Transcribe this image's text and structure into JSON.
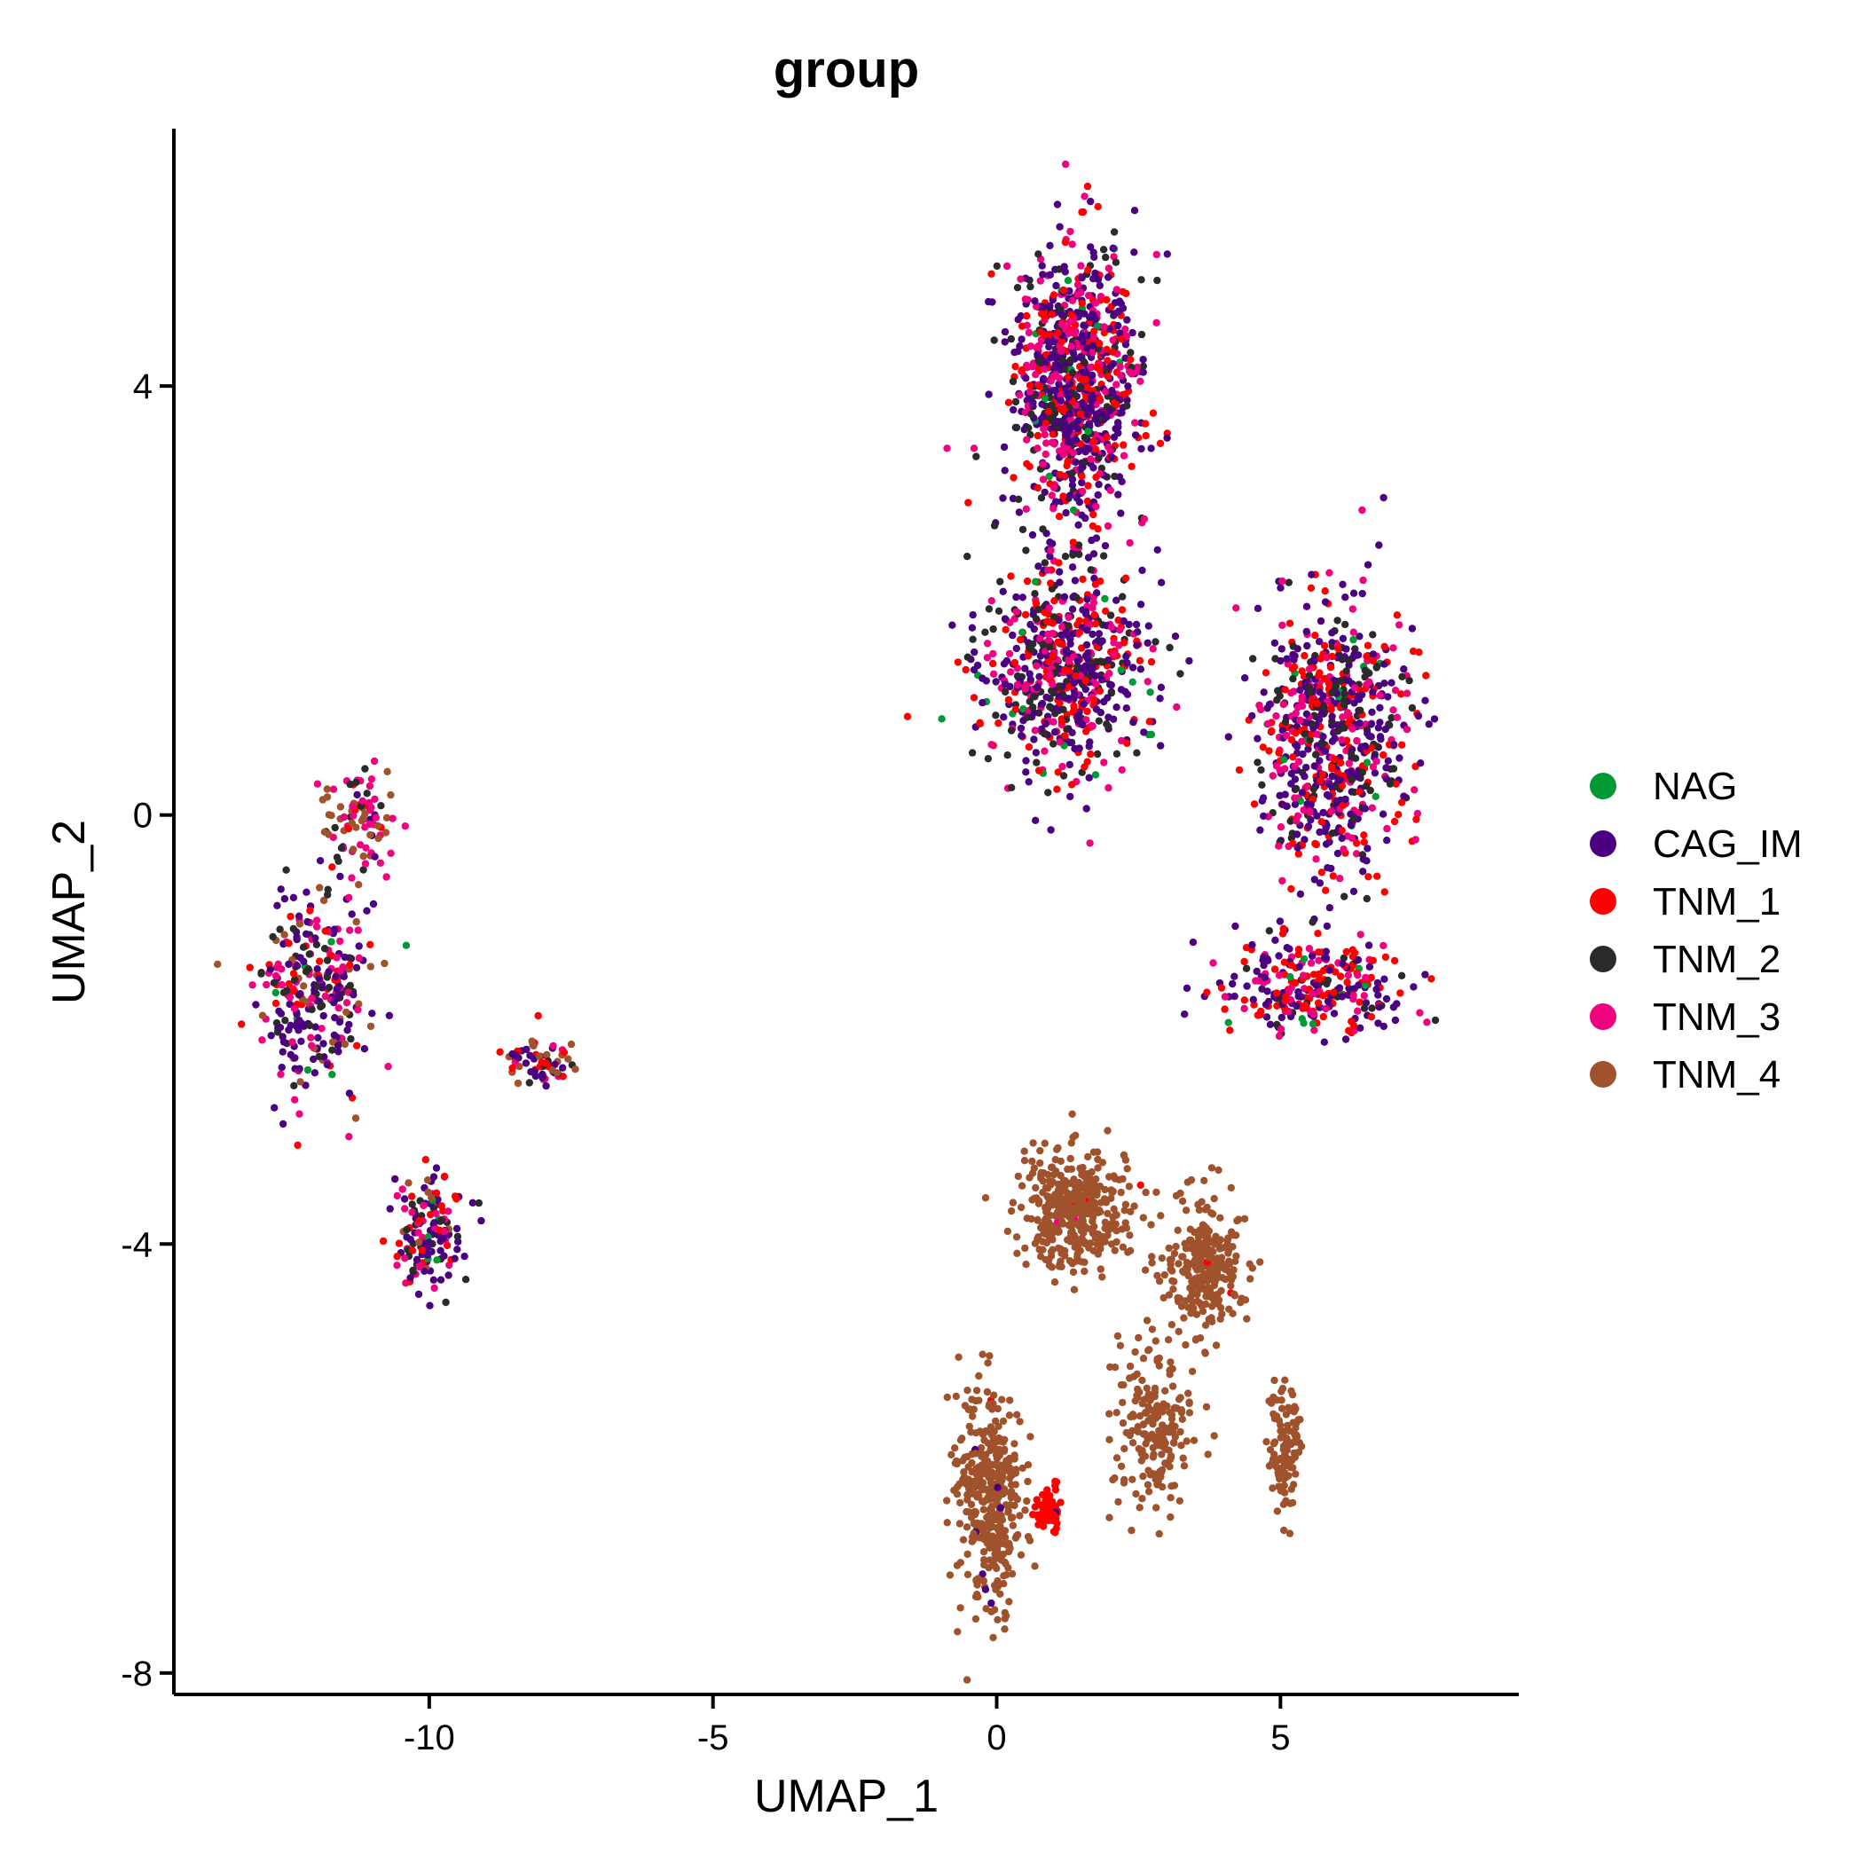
{
  "chart_data": {
    "type": "scatter",
    "title": "group",
    "xlabel": "UMAP_1",
    "ylabel": "UMAP_2",
    "xlim": [
      -14.5,
      9.2
    ],
    "ylim": [
      -8.2,
      6.4
    ],
    "x_ticks": [
      -10,
      -5,
      0,
      5
    ],
    "x_tick_labels": [
      "-10",
      "-5",
      "0",
      "5"
    ],
    "y_ticks": [
      4,
      0,
      -4,
      -8
    ],
    "y_tick_labels": [
      "4",
      "0",
      "-4",
      "-8"
    ],
    "grid": false,
    "legend_position": "right",
    "series": [
      {
        "name": "NAG",
        "color": "#009933"
      },
      {
        "name": "CAG_IM",
        "color": "#4B0082"
      },
      {
        "name": "TNM_1",
        "color": "#FF0000"
      },
      {
        "name": "TNM_2",
        "color": "#2B2B2B"
      },
      {
        "name": "TNM_3",
        "color": "#F0027F"
      },
      {
        "name": "TNM_4",
        "color": "#A0522D"
      }
    ],
    "clusters": [
      {
        "center": [
          -12.0,
          -1.6
        ],
        "spread": [
          0.9,
          0.9
        ],
        "n": 300,
        "mix": [
          0.02,
          0.34,
          0.14,
          0.16,
          0.24,
          0.1
        ]
      },
      {
        "center": [
          -11.2,
          0.0
        ],
        "spread": [
          0.6,
          0.5
        ],
        "n": 90,
        "mix": [
          0.0,
          0.1,
          0.05,
          0.15,
          0.4,
          0.3
        ]
      },
      {
        "center": [
          -10.0,
          -3.9
        ],
        "spread": [
          0.55,
          0.5
        ],
        "n": 150,
        "mix": [
          0.04,
          0.4,
          0.14,
          0.16,
          0.18,
          0.08
        ]
      },
      {
        "center": [
          -8.0,
          -2.3
        ],
        "spread": [
          0.6,
          0.2
        ],
        "n": 70,
        "mix": [
          0.0,
          0.35,
          0.15,
          0.1,
          0.1,
          0.3
        ]
      },
      {
        "center": [
          1.4,
          4.0
        ],
        "spread": [
          1.0,
          1.2
        ],
        "n": 900,
        "mix": [
          0.03,
          0.45,
          0.18,
          0.14,
          0.2,
          0.0
        ]
      },
      {
        "center": [
          1.2,
          1.4
        ],
        "spread": [
          1.3,
          0.9
        ],
        "n": 650,
        "mix": [
          0.03,
          0.4,
          0.22,
          0.15,
          0.2,
          0.0
        ]
      },
      {
        "center": [
          5.9,
          0.7
        ],
        "spread": [
          1.2,
          1.1
        ],
        "n": 700,
        "mix": [
          0.03,
          0.42,
          0.22,
          0.15,
          0.18,
          0.0
        ]
      },
      {
        "center": [
          5.6,
          -1.6
        ],
        "spread": [
          1.5,
          0.4
        ],
        "n": 280,
        "mix": [
          0.02,
          0.35,
          0.3,
          0.12,
          0.21,
          0.0
        ]
      },
      {
        "center": [
          1.4,
          -3.7
        ],
        "spread": [
          0.9,
          0.5
        ],
        "n": 400,
        "mix": [
          0.0,
          0.0,
          0.01,
          0.0,
          0.01,
          0.98
        ]
      },
      {
        "center": [
          3.7,
          -4.2
        ],
        "spread": [
          0.6,
          0.5
        ],
        "n": 260,
        "mix": [
          0.0,
          0.0,
          0.01,
          0.0,
          0.0,
          0.99
        ]
      },
      {
        "center": [
          -0.1,
          -6.3
        ],
        "spread": [
          0.55,
          0.9
        ],
        "n": 380,
        "mix": [
          0.0,
          0.02,
          0.01,
          0.0,
          0.0,
          0.97
        ]
      },
      {
        "center": [
          2.8,
          -5.7
        ],
        "spread": [
          0.6,
          0.7
        ],
        "n": 200,
        "mix": [
          0.0,
          0.0,
          0.0,
          0.0,
          0.0,
          1.0
        ]
      },
      {
        "center": [
          5.1,
          -5.9
        ],
        "spread": [
          0.25,
          0.5
        ],
        "n": 110,
        "mix": [
          0.0,
          0.0,
          0.0,
          0.0,
          0.0,
          1.0
        ]
      },
      {
        "center": [
          0.9,
          -6.5
        ],
        "spread": [
          0.25,
          0.2
        ],
        "n": 60,
        "mix": [
          0.0,
          0.05,
          0.95,
          0.0,
          0.0,
          0.0
        ]
      }
    ]
  }
}
